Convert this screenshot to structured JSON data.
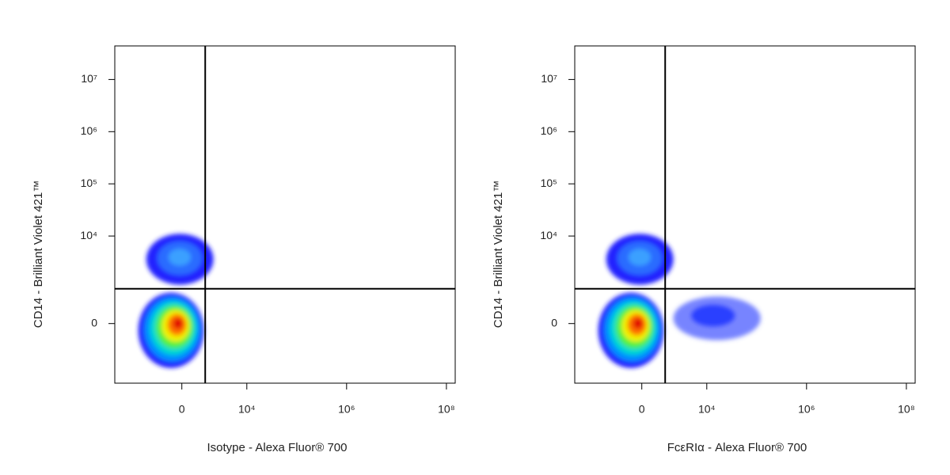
{
  "chart_data": [
    {
      "type": "density",
      "xlabel": "Isotype - Alexa Fluor® 700",
      "ylabel": "CD14 - Brilliant Violet 421™",
      "xlim": [
        -11000,
        150000000
      ],
      "ylim": [
        -2900,
        44000000
      ],
      "xticks": [
        0,
        {
          "value": 10000,
          "label": "10⁴"
        },
        {
          "value": 1000000,
          "label": "10⁶"
        },
        {
          "value": 100000000,
          "label": "10⁸"
        }
      ],
      "yticks": [
        0,
        {
          "value": 10000,
          "label": "10⁴"
        },
        {
          "value": 100000,
          "label": "10⁵"
        },
        {
          "value": 1000000,
          "label": "10⁶"
        },
        {
          "value": 10000000,
          "label": "10⁷"
        }
      ],
      "gates": {
        "x": 1300,
        "y": 930
      },
      "populations": [
        {
          "x_range": [
            -3660,
            1200
          ],
          "y_range": [
            -1460,
            760
          ],
          "peak": {
            "x": -180,
            "y": 0
          },
          "colors": [
            "#1a1aff",
            "#0090ff",
            "#00d8d0",
            "#50f040",
            "#f0f000",
            "#ff7000",
            "#e00000"
          ]
        },
        {
          "x_range": [
            -2480,
            2030
          ],
          "y_range": [
            1130,
            11000
          ],
          "peak": {
            "x": -100,
            "y": 3900
          },
          "colors": [
            "#2020ff",
            "#2a6cff",
            "#3aa0ff"
          ]
        }
      ]
    },
    {
      "type": "density",
      "xlabel": "FcεRIα - Alexa Fluor® 700",
      "ylabel": "CD14 - Brilliant Violet 421™",
      "xlim": [
        -11000,
        150000000
      ],
      "ylim": [
        -2900,
        44000000
      ],
      "xticks": [
        0,
        {
          "value": 10000,
          "label": "10⁴"
        },
        {
          "value": 1000000,
          "label": "10⁶"
        },
        {
          "value": 100000000,
          "label": "10⁸"
        }
      ],
      "yticks": [
        0,
        {
          "value": 10000,
          "label": "10⁴"
        },
        {
          "value": 100000,
          "label": "10⁵"
        },
        {
          "value": 1000000,
          "label": "10⁶"
        },
        {
          "value": 10000000,
          "label": "10⁷"
        }
      ],
      "gates": {
        "x": 1300,
        "y": 930
      },
      "populations": [
        {
          "x_range": [
            -3660,
            1200
          ],
          "y_range": [
            -1460,
            760
          ],
          "peak": {
            "x": -180,
            "y": 0
          },
          "colors": [
            "#1a1aff",
            "#0090ff",
            "#00d8d0",
            "#50f040",
            "#f0f000",
            "#ff7000",
            "#e00000"
          ]
        },
        {
          "x_range": [
            -2480,
            2030
          ],
          "y_range": [
            1130,
            11000
          ],
          "peak": {
            "x": -100,
            "y": 3900
          },
          "colors": [
            "#2020ff",
            "#2a6cff",
            "#3aa0ff"
          ]
        },
        {
          "x_range": [
            2030,
            120000
          ],
          "y_range": [
            -335,
            630
          ],
          "peak": {
            "x": 13400,
            "y": 150
          },
          "colors": [
            "#4a5cff",
            "#2a40ff"
          ]
        }
      ]
    }
  ]
}
